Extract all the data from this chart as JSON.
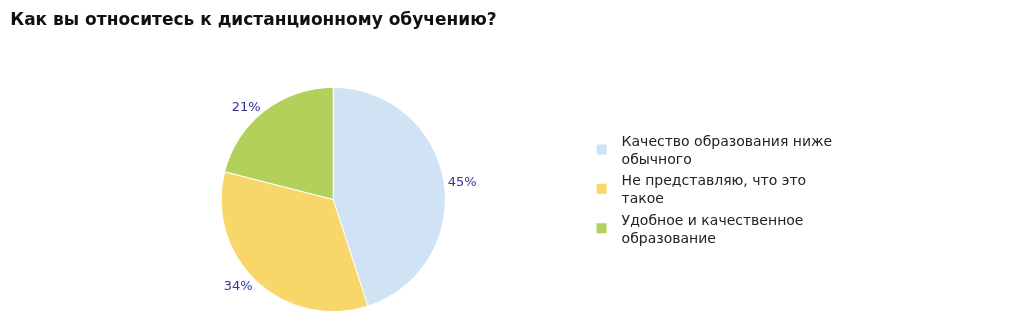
{
  "chart_data": {
    "type": "pie",
    "title": "Как вы относитесь к дистанционному обучению?",
    "categories": [
      "Качество образования ниже обычного",
      "Не представляю, что это такое",
      "Удобное и качественное образование"
    ],
    "values": [
      45,
      34,
      21
    ],
    "value_labels": [
      "45%",
      "34%",
      "21%"
    ],
    "colors": [
      "#cfe3f5",
      "#f8d66a",
      "#b3d05a"
    ],
    "legend": "right"
  }
}
